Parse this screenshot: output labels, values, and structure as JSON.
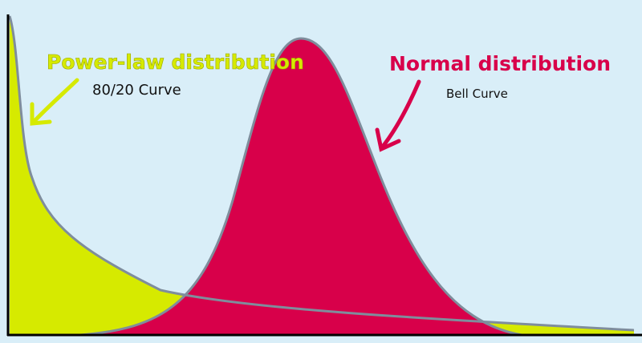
{
  "power_law": {
    "title": "Power-law distribution",
    "subtitle": "80/20 Curve"
  },
  "normal": {
    "title": "Normal distribution",
    "subtitle": "Bell Curve"
  }
}
